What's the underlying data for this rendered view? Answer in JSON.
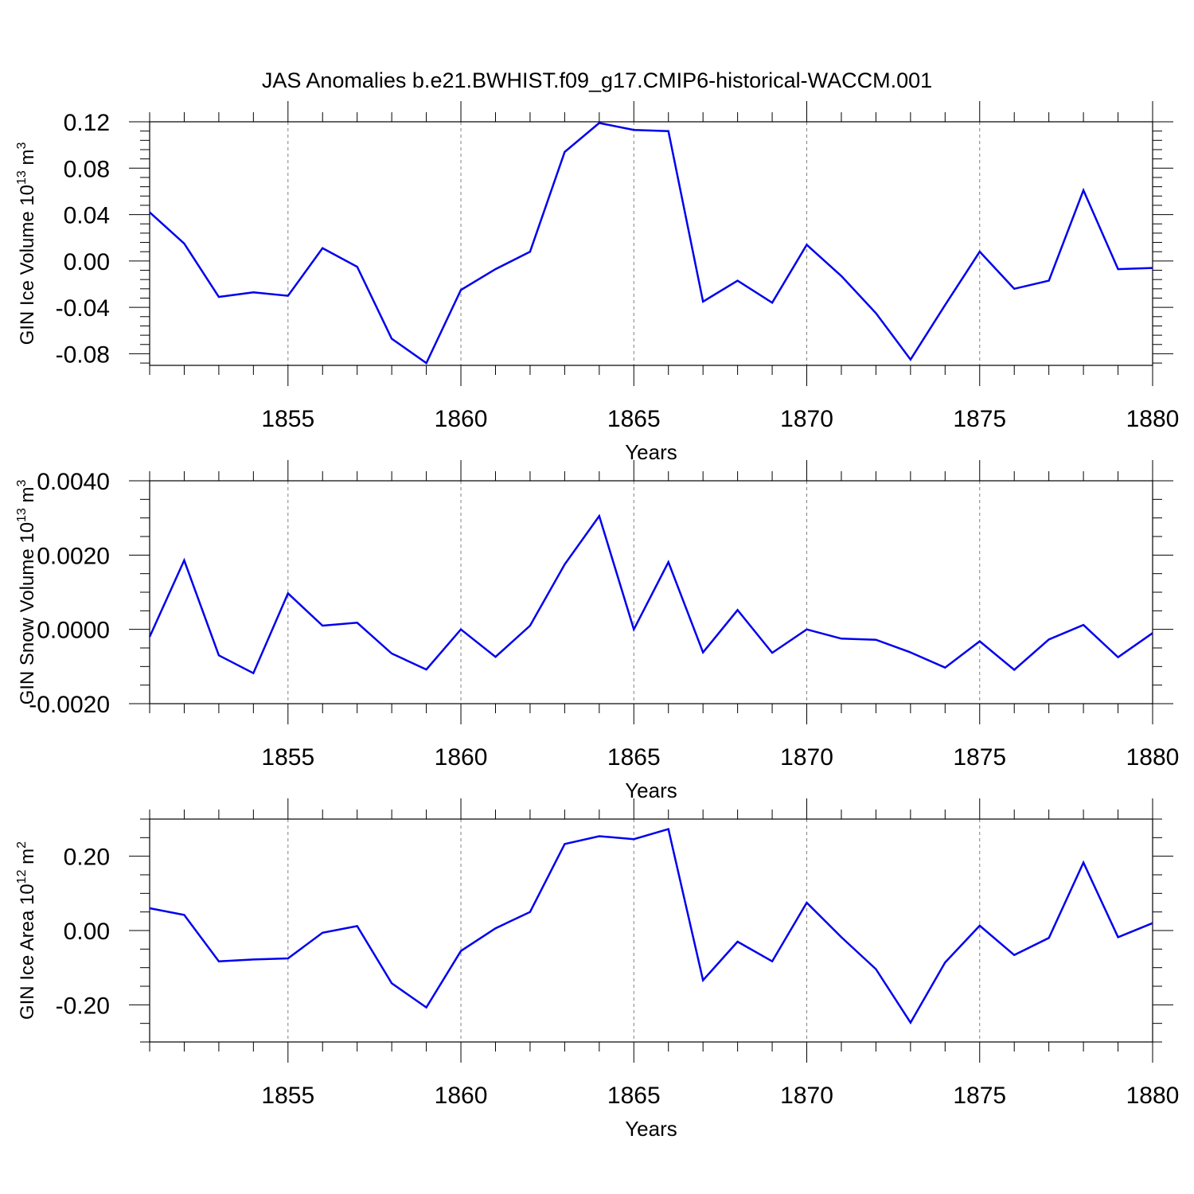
{
  "figure": {
    "title": "JAS Anomalies b.e21.BWHIST.f09_g17.CMIP6-historical-WACCM.001",
    "line_color": "#0000ee",
    "axis_color": "#000000",
    "grid_color": "#808080"
  },
  "chart_data": [
    {
      "type": "line",
      "title": "",
      "xlabel": "Years",
      "ylabel": "GIN Ice Volume 10",
      "ylabel_sup": "13",
      "ylabel_unit": "m",
      "ylabel_unit_sup": "3",
      "xlim": [
        1851,
        1880
      ],
      "ylim": [
        -0.09,
        0.12
      ],
      "xticks": [
        1855,
        1860,
        1865,
        1870,
        1875,
        1880
      ],
      "xtick_labels": [
        "1855",
        "1860",
        "1865",
        "1870",
        "1875",
        "1880"
      ],
      "yticks": [
        -0.08,
        -0.04,
        0.0,
        0.04,
        0.08,
        0.12
      ],
      "ytick_labels": [
        "-0.08",
        "-0.04",
        "0.00",
        "0.04",
        "0.08",
        "0.12"
      ],
      "yminor_step": 0.008,
      "grid": "vertical dashed at major x ticks",
      "x": [
        1851,
        1852,
        1853,
        1854,
        1855,
        1856,
        1857,
        1858,
        1859,
        1860,
        1861,
        1862,
        1863,
        1864,
        1865,
        1866,
        1867,
        1868,
        1869,
        1870,
        1871,
        1872,
        1873,
        1874,
        1875,
        1876,
        1877,
        1878,
        1879,
        1880
      ],
      "series": [
        {
          "name": "GIN Ice Volume",
          "values": [
            0.042,
            0.015,
            -0.031,
            -0.027,
            -0.03,
            0.011,
            -0.005,
            -0.067,
            -0.088,
            -0.025,
            -0.007,
            0.008,
            0.094,
            0.119,
            0.113,
            0.112,
            -0.035,
            -0.017,
            -0.036,
            0.014,
            -0.013,
            -0.045,
            -0.085,
            -0.038,
            0.008,
            -0.024,
            -0.017,
            0.061,
            -0.007,
            -0.006
          ]
        }
      ]
    },
    {
      "type": "line",
      "title": "",
      "xlabel": "Years",
      "ylabel": "GIN Snow Volume 10",
      "ylabel_sup": "13",
      "ylabel_unit": "m",
      "ylabel_unit_sup": "3",
      "xlim": [
        1851,
        1880
      ],
      "ylim": [
        -0.002,
        0.004
      ],
      "xticks": [
        1855,
        1860,
        1865,
        1870,
        1875,
        1880
      ],
      "xtick_labels": [
        "1855",
        "1860",
        "1865",
        "1870",
        "1875",
        "1880"
      ],
      "yticks": [
        -0.002,
        0.0,
        0.002,
        0.004
      ],
      "ytick_labels": [
        "-0.0020",
        "0.0000",
        "0.0020",
        "0.0040"
      ],
      "yminor_step": 0.0005,
      "grid": "vertical dashed at major x ticks",
      "x": [
        1851,
        1852,
        1853,
        1854,
        1855,
        1856,
        1857,
        1858,
        1859,
        1860,
        1861,
        1862,
        1863,
        1864,
        1865,
        1866,
        1867,
        1868,
        1869,
        1870,
        1871,
        1872,
        1873,
        1874,
        1875,
        1876,
        1877,
        1878,
        1879,
        1880
      ],
      "series": [
        {
          "name": "GIN Snow Volume",
          "values": [
            -0.0002,
            0.00186,
            -0.0007,
            -0.00118,
            0.00097,
            0.0001,
            0.00018,
            -0.00065,
            -0.00108,
            0.0,
            -0.00074,
            0.0001,
            0.00175,
            0.00305,
            0.0,
            0.00181,
            -0.00062,
            0.00052,
            -0.00063,
            0.0,
            -0.00025,
            -0.00028,
            -0.00062,
            -0.00103,
            -0.00032,
            -0.00109,
            -0.00027,
            0.00012,
            -0.00075,
            -0.0001
          ]
        }
      ]
    },
    {
      "type": "line",
      "title": "",
      "xlabel": "Years",
      "ylabel": "GIN Ice Area 10",
      "ylabel_sup": "12",
      "ylabel_unit": "m",
      "ylabel_unit_sup": "2",
      "xlim": [
        1851,
        1880
      ],
      "ylim": [
        -0.3,
        0.3
      ],
      "xticks": [
        1855,
        1860,
        1865,
        1870,
        1875,
        1880
      ],
      "xtick_labels": [
        "1855",
        "1860",
        "1865",
        "1870",
        "1875",
        "1880"
      ],
      "yticks": [
        -0.2,
        0.0,
        0.2
      ],
      "ytick_labels": [
        "-0.20",
        "0.00",
        "0.20"
      ],
      "yminor_step": 0.05,
      "grid": "vertical dashed at major x ticks",
      "x": [
        1851,
        1852,
        1853,
        1854,
        1855,
        1856,
        1857,
        1858,
        1859,
        1860,
        1861,
        1862,
        1863,
        1864,
        1865,
        1866,
        1867,
        1868,
        1869,
        1870,
        1871,
        1872,
        1873,
        1874,
        1875,
        1876,
        1877,
        1878,
        1879,
        1880
      ],
      "series": [
        {
          "name": "GIN Ice Area",
          "values": [
            0.06,
            0.042,
            -0.083,
            -0.078,
            -0.075,
            -0.006,
            0.012,
            -0.142,
            -0.207,
            -0.055,
            0.006,
            0.05,
            0.233,
            0.254,
            0.246,
            0.273,
            -0.134,
            -0.03,
            -0.083,
            0.075,
            -0.018,
            -0.104,
            -0.248,
            -0.086,
            0.013,
            -0.066,
            -0.02,
            0.183,
            -0.018,
            0.02
          ]
        }
      ]
    }
  ]
}
